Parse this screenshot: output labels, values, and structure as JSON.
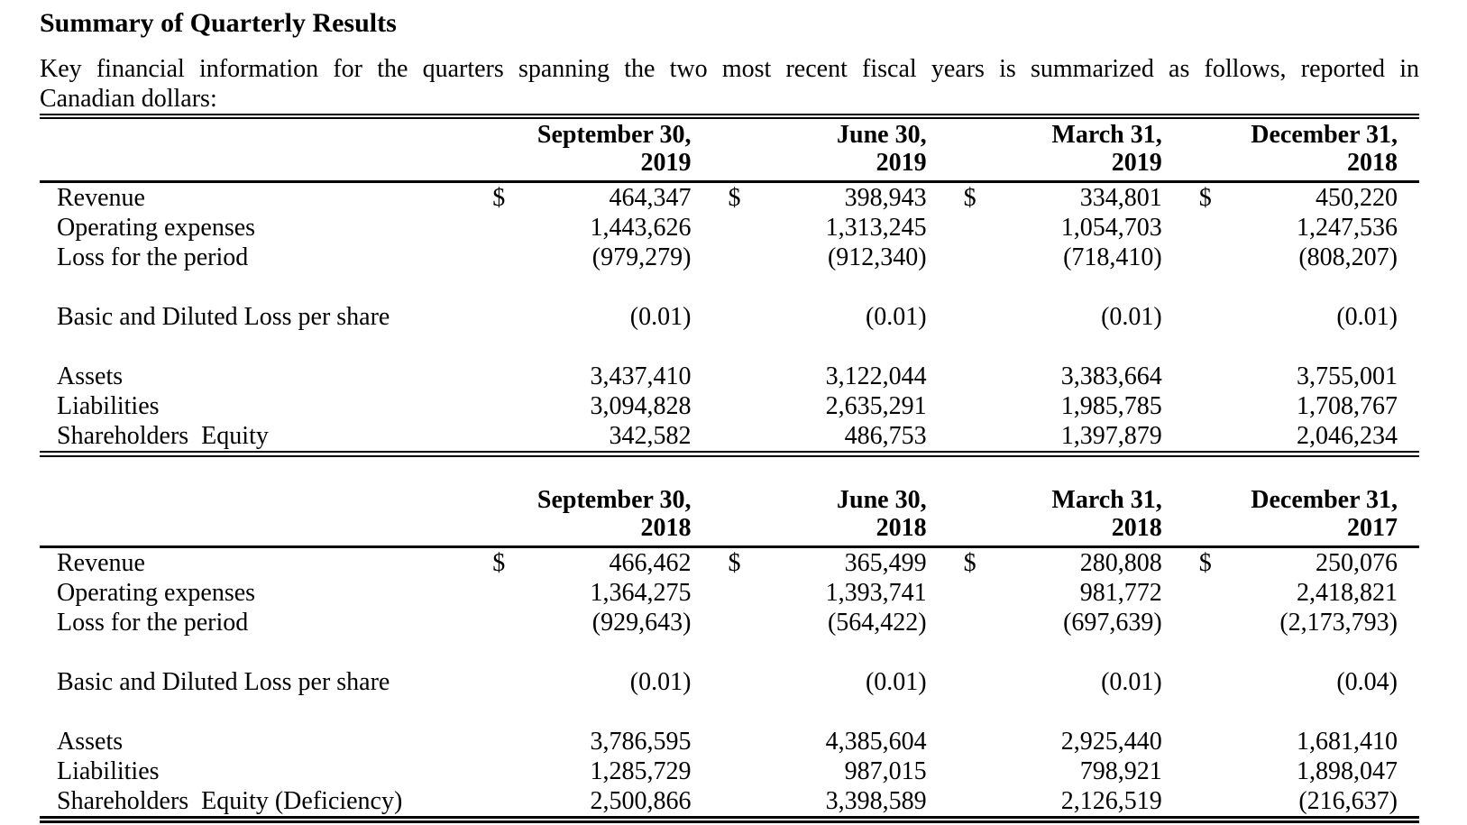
{
  "page": {
    "title": "Summary of Quarterly Results",
    "intro_line1": "Key financial information for the quarters spanning the two most recent fiscal years is summarized as follows, reported in",
    "intro_line2": "Canadian dollars:"
  },
  "tables": [
    {
      "name": "fiscal-2019-quarters",
      "columns": [
        {
          "line1": "September 30,",
          "line2": "2019"
        },
        {
          "line1": "June 30,",
          "line2": "2019"
        },
        {
          "line1": "March 31,",
          "line2": "2019"
        },
        {
          "line1": "December 31,",
          "line2": "2018"
        }
      ],
      "rows": [
        {
          "label": "Revenue",
          "currency": "$",
          "values": [
            "464,347",
            "398,943",
            "334,801",
            "450,220"
          ]
        },
        {
          "label": "Operating expenses",
          "values": [
            "1,443,626",
            "1,313,245",
            "1,054,703",
            "1,247,536"
          ]
        },
        {
          "label": "Loss for the period",
          "values": [
            "(979,279)",
            "(912,340)",
            "(718,410)",
            "(808,207)"
          ]
        },
        {
          "spacer": true
        },
        {
          "label": "Basic and Diluted Loss per share",
          "values": [
            "(0.01)",
            "(0.01)",
            "(0.01)",
            "(0.01)"
          ]
        },
        {
          "spacer": true
        },
        {
          "label": "Assets",
          "values": [
            "3,437,410",
            "3,122,044",
            "3,383,664",
            "3,755,001"
          ]
        },
        {
          "label": "Liabilities",
          "values": [
            "3,094,828",
            "2,635,291",
            "1,985,785",
            "1,708,767"
          ]
        },
        {
          "label": "Shareholders  Equity",
          "values": [
            "342,582",
            "486,753",
            "1,397,879",
            "2,046,234"
          ]
        }
      ]
    },
    {
      "name": "fiscal-2018-quarters",
      "columns": [
        {
          "line1": "September 30,",
          "line2": "2018"
        },
        {
          "line1": "June 30,",
          "line2": "2018"
        },
        {
          "line1": "March 31,",
          "line2": "2018"
        },
        {
          "line1": "December 31,",
          "line2": "2017"
        }
      ],
      "rows": [
        {
          "label": "Revenue",
          "currency": "$",
          "values": [
            "466,462",
            "365,499",
            "280,808",
            "250,076"
          ]
        },
        {
          "label": "Operating expenses",
          "values": [
            "1,364,275",
            "1,393,741",
            "981,772",
            "2,418,821"
          ]
        },
        {
          "label": "Loss for the period",
          "values": [
            "(929,643)",
            "(564,422)",
            "(697,639)",
            "(2,173,793)"
          ]
        },
        {
          "spacer": true
        },
        {
          "label": "Basic and Diluted Loss per share",
          "values": [
            "(0.01)",
            "(0.01)",
            "(0.01)",
            "(0.04)"
          ]
        },
        {
          "spacer": true
        },
        {
          "label": "Assets",
          "values": [
            "3,786,595",
            "4,385,604",
            "2,925,440",
            "1,681,410"
          ]
        },
        {
          "label": "Liabilities",
          "values": [
            "1,285,729",
            "987,015",
            "798,921",
            "1,898,047"
          ]
        },
        {
          "label": "Shareholders  Equity (Deficiency)",
          "values": [
            "2,500,866",
            "3,398,589",
            "2,126,519",
            "(216,637)"
          ]
        }
      ]
    }
  ]
}
